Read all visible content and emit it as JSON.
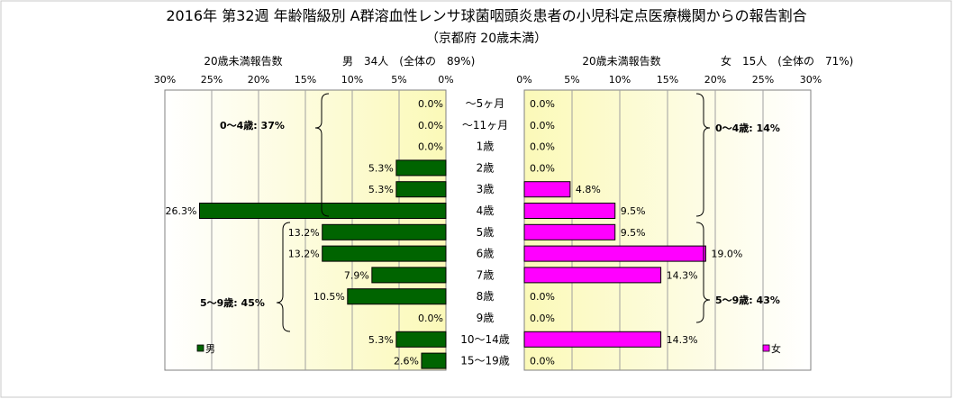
{
  "chart_data": {
    "type": "bar",
    "title": "2016年 第32週 年齢階級別 A群溶血性レンサ球菌咽頭炎患者の小児科定点医療機関からの報告割合",
    "subtitle": "（京都府 20歳未満）",
    "categories": [
      "～5ヶ月",
      "～11ヶ月",
      "1歳",
      "2歳",
      "3歳",
      "4歳",
      "5歳",
      "6歳",
      "7歳",
      "8歳",
      "9歳",
      "10～14歳",
      "15～19歳"
    ],
    "xlim": [
      0,
      30
    ],
    "ticks": [
      "30%",
      "25%",
      "20%",
      "15%",
      "10%",
      "5%",
      "0%"
    ],
    "ticks_right": [
      "0%",
      "5%",
      "10%",
      "15%",
      "20%",
      "25%",
      "30%"
    ],
    "grid": true,
    "series": [
      {
        "name": "男",
        "side": "left",
        "color": "#006400",
        "header_label": "20歳未満報告数",
        "header_value": "男　34人　(全体の　89%)",
        "values": [
          0.0,
          0.0,
          0.0,
          5.3,
          5.3,
          26.3,
          13.2,
          13.2,
          7.9,
          10.5,
          0.0,
          5.3,
          2.6
        ],
        "value_labels": [
          "0.0%",
          "0.0%",
          "0.0%",
          "5.3%",
          "5.3%",
          "26.3%",
          "13.2%",
          "13.2%",
          "7.9%",
          "10.5%",
          "0.0%",
          "5.3%",
          "2.6%"
        ],
        "annotations": [
          "0～4歳: 37%",
          "5～9歳: 45%"
        ]
      },
      {
        "name": "女",
        "side": "right",
        "color": "#ff00ff",
        "header_label": "20歳未満報告数",
        "header_value": "女　15人　(全体の　71%)",
        "values": [
          0.0,
          0.0,
          0.0,
          0.0,
          4.8,
          9.5,
          9.5,
          19.0,
          14.3,
          0.0,
          0.0,
          14.3,
          0.0
        ],
        "value_labels": [
          "0.0%",
          "0.0%",
          "0.0%",
          "0.0%",
          "4.8%",
          "9.5%",
          "9.5%",
          "19.0%",
          "14.3%",
          "0.0%",
          "0.0%",
          "14.3%",
          "0.0%"
        ],
        "annotations": [
          "0～4歳: 14%",
          "5～9歳: 43%"
        ]
      }
    ]
  }
}
